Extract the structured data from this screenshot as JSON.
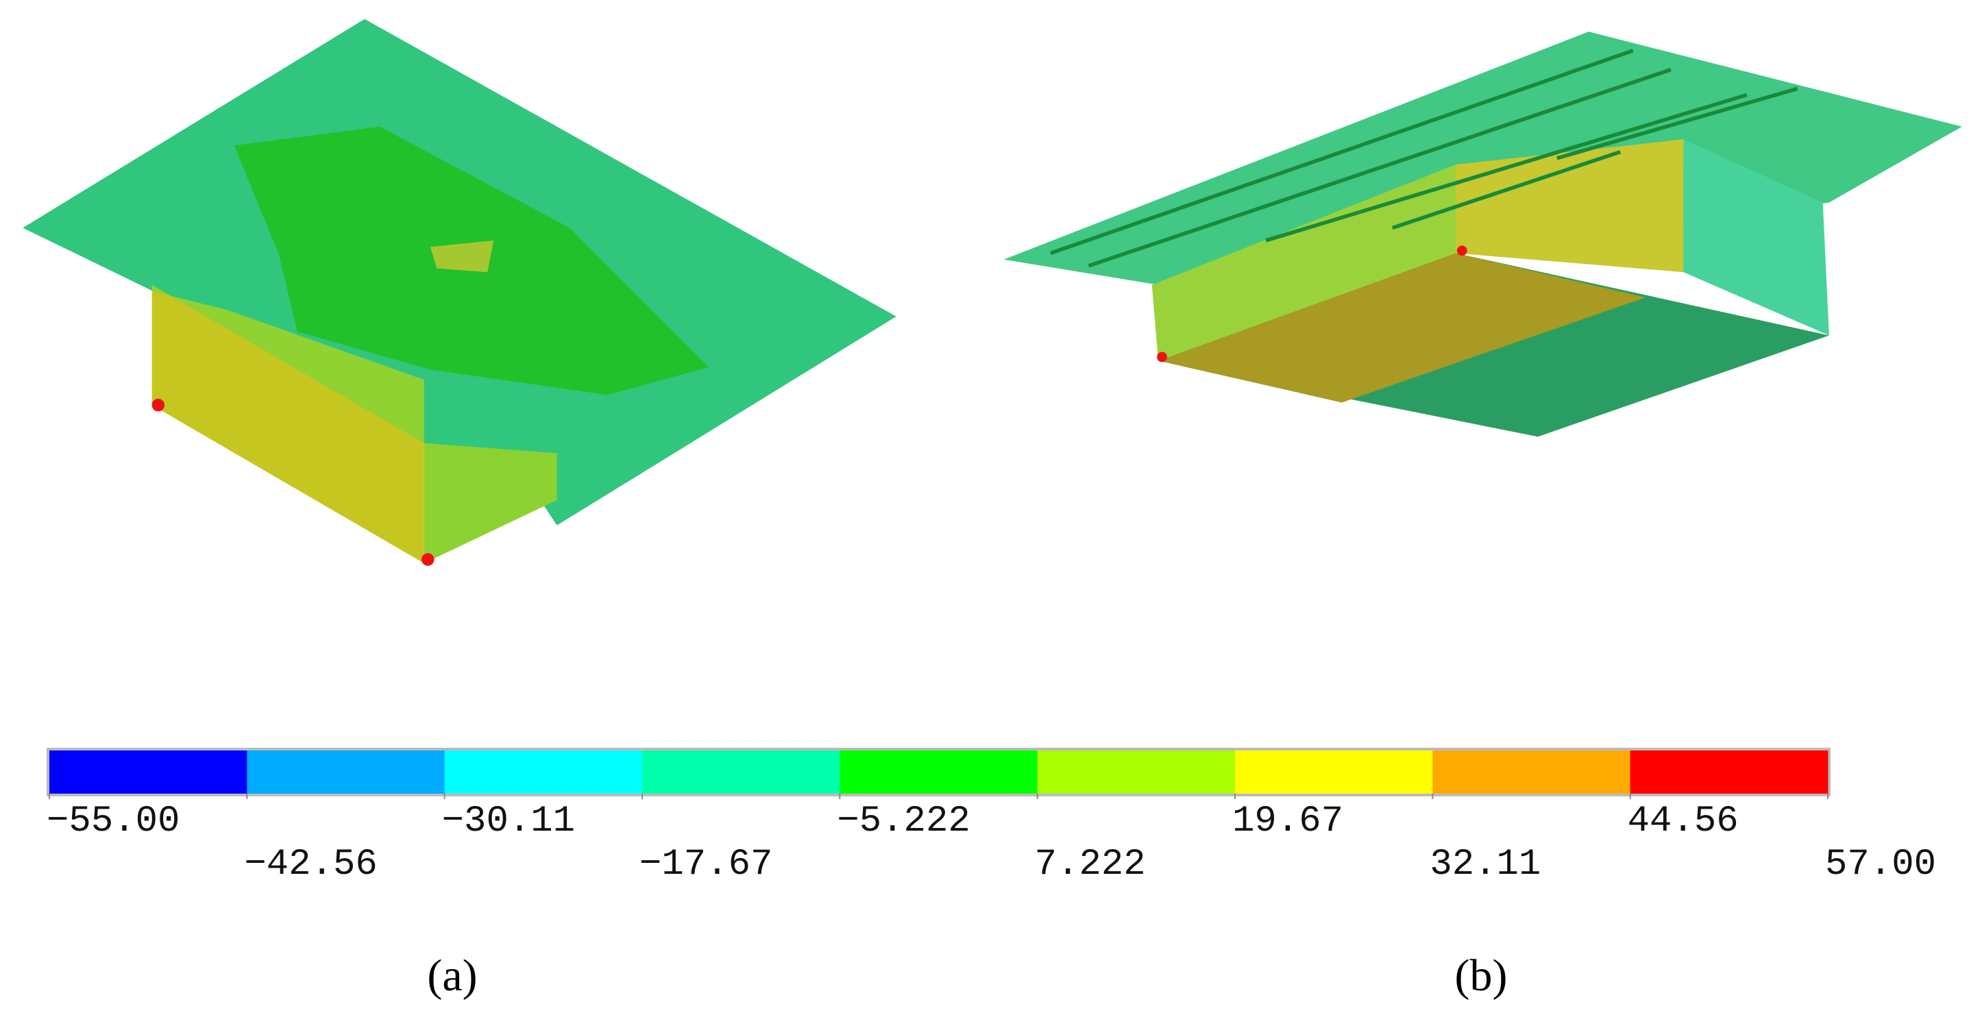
{
  "colorbar": {
    "colors": [
      "#0000ff",
      "#00aaff",
      "#00ffff",
      "#00ffaa",
      "#00ff00",
      "#aaff00",
      "#ffff00",
      "#ffaa00",
      "#ff0000"
    ],
    "labels": [
      "−55.00",
      "−42.56",
      "−30.11",
      "−17.67",
      "−5.222",
      "7.222",
      "19.67",
      "32.11",
      "44.56",
      "57.00"
    ]
  },
  "panels": [
    {
      "label": "(a)"
    },
    {
      "label": "(b)"
    }
  ]
}
